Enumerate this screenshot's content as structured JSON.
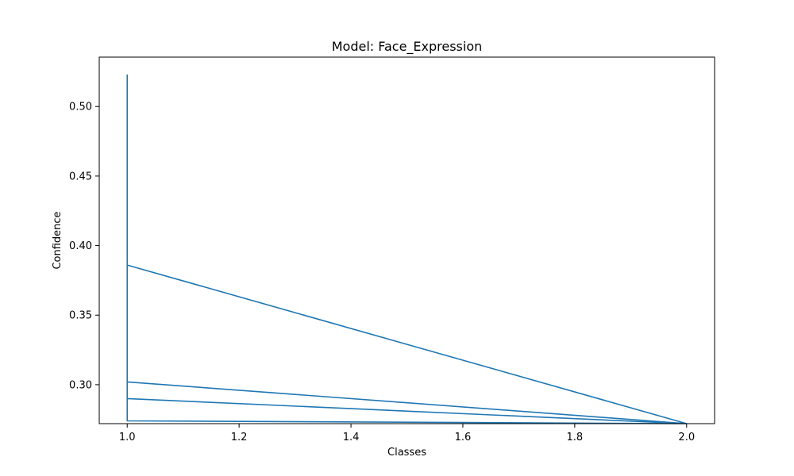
{
  "chart_data": {
    "type": "line",
    "title": "Model: Face_Expression",
    "xlabel": "Classes",
    "ylabel": "Confidence",
    "xlim": [
      0.95,
      2.05
    ],
    "ylim": [
      0.272,
      0.5355
    ],
    "xticks": [
      1.0,
      1.2,
      1.4,
      1.6,
      1.8,
      2.0
    ],
    "xtick_labels": [
      "1.0",
      "1.2",
      "1.4",
      "1.6",
      "1.8",
      "2.0"
    ],
    "yticks": [
      0.3,
      0.35,
      0.4,
      0.45,
      0.5
    ],
    "ytick_labels": [
      "0.30",
      "0.35",
      "0.40",
      "0.45",
      "0.50"
    ],
    "color": "#1f77b4",
    "series": [
      {
        "x": [
          1.0,
          1.0,
          1.0,
          1.0,
          1.0,
          1.0,
          2.0,
          1.0,
          1.0,
          1.0,
          1.0,
          2.0,
          1.0,
          1.0
        ],
        "y": [
          0.523,
          0.45,
          0.4,
          0.35,
          0.32,
          0.386,
          0.272,
          0.302,
          0.32,
          0.31,
          0.29,
          0.272,
          0.274,
          0.3
        ]
      }
    ]
  }
}
